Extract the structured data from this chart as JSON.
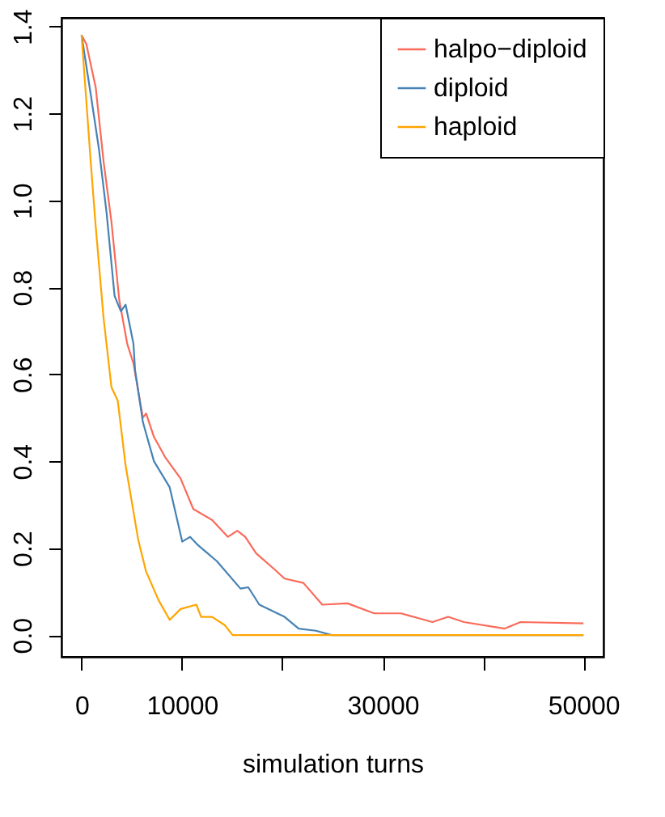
{
  "chart_data": {
    "type": "line",
    "xlabel": "simulation turns",
    "xlim": [
      -2000,
      52000
    ],
    "ylim": [
      -0.05,
      1.42
    ],
    "xticks": [
      0,
      10000,
      {
        "value": 20000,
        "label": null
      },
      30000,
      {
        "value": 40000,
        "label": null
      },
      50000
    ],
    "yticks": [
      {
        "value": 0,
        "label": "0.0"
      },
      0.2,
      0.4,
      0.6,
      0.8,
      {
        "value": 1,
        "label": "1.0"
      },
      1.2,
      1.4
    ],
    "grid": false,
    "legend": "top right",
    "marker": "none",
    "line_style": "solid",
    "series": [
      {
        "name": "halpo−diploid",
        "color": "#fa6a5a",
        "x": [
          0,
          470,
          1410,
          2190,
          2980,
          3760,
          4550,
          5170,
          6110,
          6430,
          7210,
          8310,
          9870,
          11130,
          13000,
          14580,
          15520,
          16300,
          17400,
          19280,
          20220,
          22100,
          23980,
          26490,
          29150,
          31820,
          34950,
          36520,
          38090,
          42160,
          43730,
          50000
        ],
        "values": [
          1.38,
          1.36,
          1.26,
          1.09,
          0.95,
          0.77,
          0.67,
          0.625,
          0.5,
          0.51,
          0.456,
          0.41,
          0.36,
          0.29,
          0.265,
          0.226,
          0.24,
          0.226,
          0.188,
          0.15,
          0.13,
          0.12,
          0.07,
          0.073,
          0.05,
          0.05,
          0.03,
          0.042,
          0.03,
          0.015,
          0.03,
          0.027
        ]
      },
      {
        "name": "diploid",
        "color": "#4682b4",
        "x": [
          0,
          940,
          1720,
          2500,
          3290,
          3920,
          4390,
          5170,
          5330,
          6110,
          7210,
          8780,
          10030,
          10820,
          11600,
          13480,
          15830,
          16610,
          17710,
          20220,
          21630,
          23350,
          24920,
          50000
        ],
        "values": [
          1.38,
          1.24,
          1.12,
          0.97,
          0.78,
          0.745,
          0.76,
          0.67,
          0.61,
          0.49,
          0.4,
          0.34,
          0.215,
          0.226,
          0.207,
          0.17,
          0.107,
          0.11,
          0.07,
          0.042,
          0.015,
          0.01,
          0.0,
          0.0
        ]
      },
      {
        "name": "haploid",
        "color": "#ffa500",
        "x": [
          0,
          940,
          1410,
          2190,
          2980,
          3600,
          4390,
          5640,
          6430,
          7680,
          8780,
          9870,
          11440,
          11910,
          13000,
          14260,
          15050,
          50000
        ],
        "values": [
          1.38,
          1.08,
          0.94,
          0.73,
          0.57,
          0.54,
          0.39,
          0.22,
          0.146,
          0.08,
          0.035,
          0.06,
          0.07,
          0.042,
          0.042,
          0.023,
          0.0,
          0.0
        ]
      }
    ]
  }
}
